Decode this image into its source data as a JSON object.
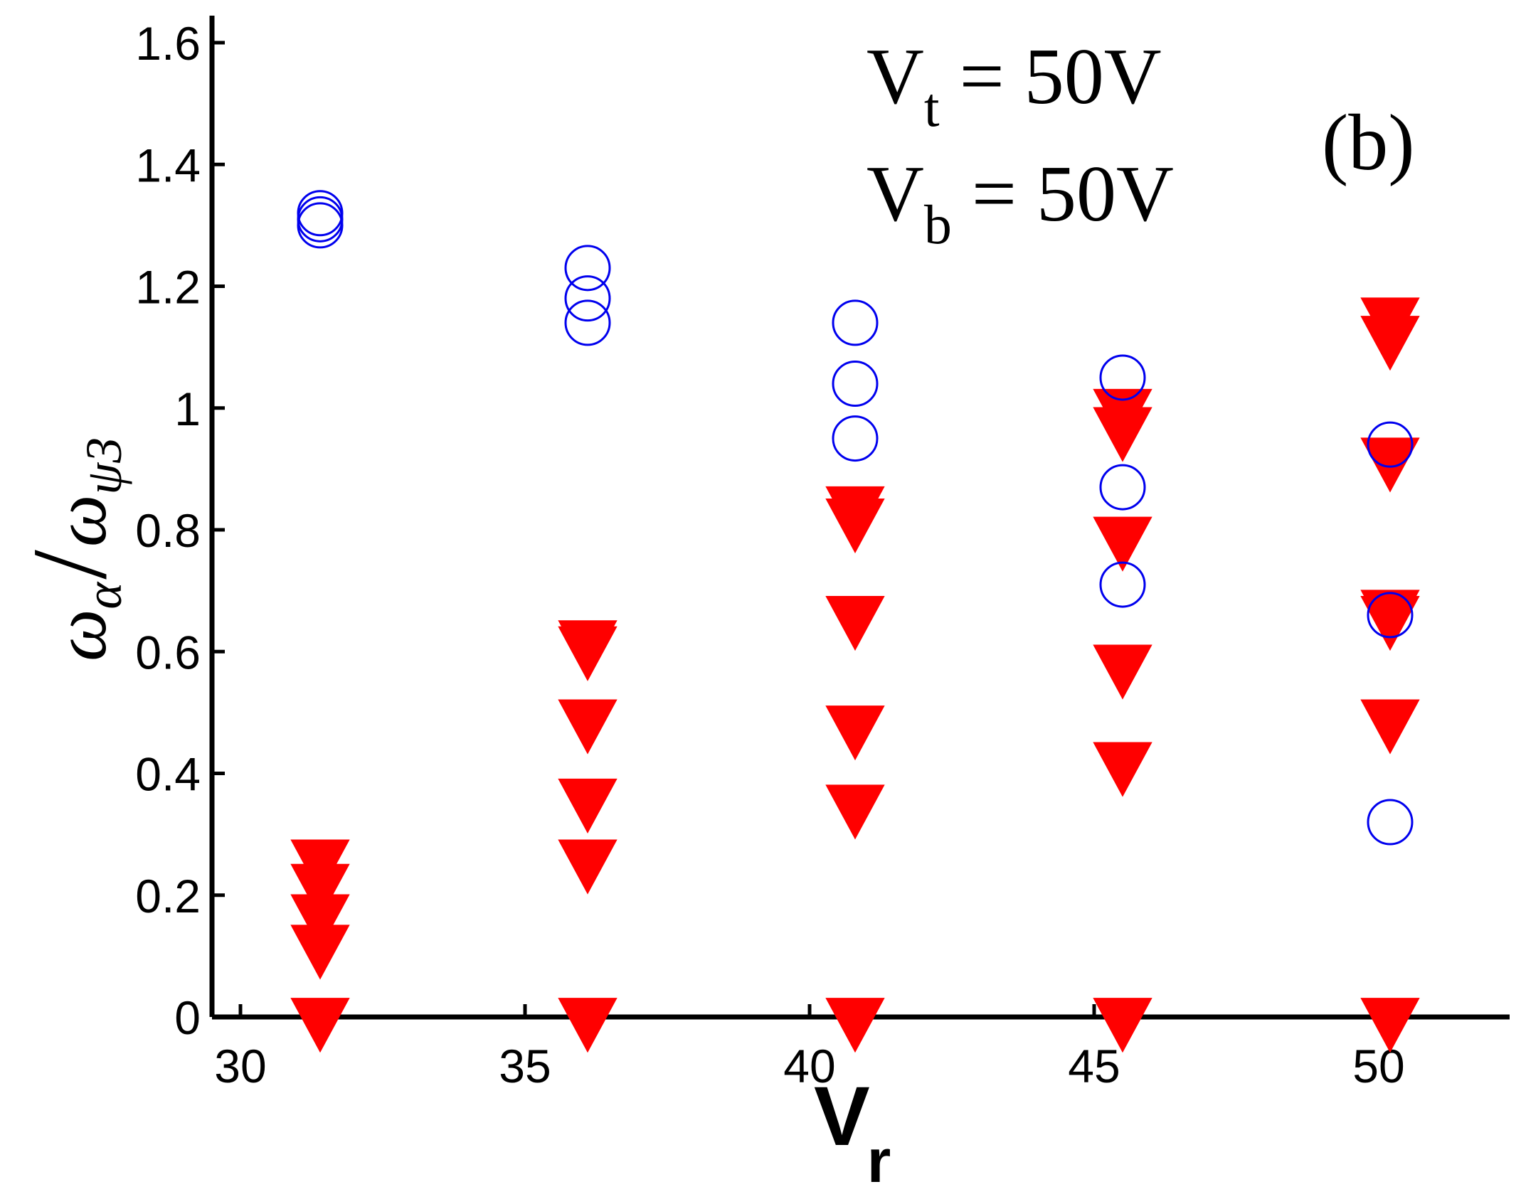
{
  "chart_data": {
    "type": "scatter",
    "xlim": [
      29.5,
      52.3
    ],
    "ylim": [
      0,
      1.65
    ],
    "xticks": [
      30,
      35,
      40,
      45,
      50
    ],
    "yticks": [
      0,
      0.2,
      0.4,
      0.6,
      0.8,
      1,
      1.2,
      1.4,
      1.6
    ],
    "xtick_labels": [
      "30",
      "35",
      "40",
      "45",
      "50"
    ],
    "ytick_labels": [
      "0",
      "0.2",
      "0.4",
      "0.6",
      "0.8",
      "1",
      "1.2",
      "1.4",
      "1.6"
    ],
    "xlabel": {
      "main": "V",
      "sub": "r"
    },
    "ylabel": {
      "w1": "ω",
      "s1": "α",
      "slash": "/",
      "w2": "ω",
      "s2": "ψ3"
    },
    "annotations": {
      "vt": {
        "main": "V",
        "sub": "t",
        "rest": " = 50V"
      },
      "vb": {
        "main": "V",
        "sub": "b",
        "rest": " = 50V"
      },
      "panel": "(b)"
    },
    "grid": false,
    "series": [
      {
        "marker": "open-circle",
        "color": "#0000ee",
        "points": [
          {
            "x": 31.4,
            "y": 1.3
          },
          {
            "x": 31.4,
            "y": 1.31
          },
          {
            "x": 31.4,
            "y": 1.32
          },
          {
            "x": 36.1,
            "y": 1.14
          },
          {
            "x": 36.1,
            "y": 1.18
          },
          {
            "x": 36.1,
            "y": 1.23
          },
          {
            "x": 40.8,
            "y": 0.95
          },
          {
            "x": 40.8,
            "y": 1.04
          },
          {
            "x": 40.8,
            "y": 1.14
          },
          {
            "x": 45.5,
            "y": 0.71
          },
          {
            "x": 45.5,
            "y": 0.87
          },
          {
            "x": 45.5,
            "y": 1.05
          },
          {
            "x": 50.2,
            "y": 0.32
          },
          {
            "x": 50.2,
            "y": 0.66
          },
          {
            "x": 50.2,
            "y": 0.94
          }
        ]
      },
      {
        "marker": "filled-triangle-down",
        "color": "#ff0000",
        "points": [
          {
            "x": 31.4,
            "y": 0.0
          },
          {
            "x": 31.4,
            "y": 0.12
          },
          {
            "x": 31.4,
            "y": 0.17
          },
          {
            "x": 31.4,
            "y": 0.22
          },
          {
            "x": 31.4,
            "y": 0.26
          },
          {
            "x": 36.1,
            "y": 0.0
          },
          {
            "x": 36.1,
            "y": 0.26
          },
          {
            "x": 36.1,
            "y": 0.36
          },
          {
            "x": 36.1,
            "y": 0.49
          },
          {
            "x": 36.1,
            "y": 0.61
          },
          {
            "x": 36.1,
            "y": 0.62
          },
          {
            "x": 40.8,
            "y": 0.0
          },
          {
            "x": 40.8,
            "y": 0.35
          },
          {
            "x": 40.8,
            "y": 0.48
          },
          {
            "x": 40.8,
            "y": 0.66
          },
          {
            "x": 40.8,
            "y": 0.82
          },
          {
            "x": 40.8,
            "y": 0.84
          },
          {
            "x": 45.5,
            "y": 0.0
          },
          {
            "x": 45.5,
            "y": 0.42
          },
          {
            "x": 45.5,
            "y": 0.58
          },
          {
            "x": 45.5,
            "y": 0.79
          },
          {
            "x": 45.5,
            "y": 0.97
          },
          {
            "x": 45.5,
            "y": 1.0
          },
          {
            "x": 50.2,
            "y": 0.0
          },
          {
            "x": 50.2,
            "y": 0.49
          },
          {
            "x": 50.2,
            "y": 0.66
          },
          {
            "x": 50.2,
            "y": 0.67
          },
          {
            "x": 50.2,
            "y": 0.92
          },
          {
            "x": 50.2,
            "y": 1.12
          },
          {
            "x": 50.2,
            "y": 1.15
          }
        ]
      }
    ]
  }
}
